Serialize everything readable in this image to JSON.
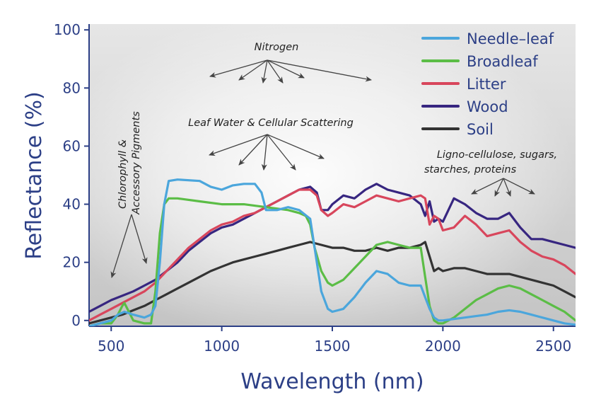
{
  "chart_data": {
    "type": "line",
    "xlabel": "Wavelength (nm)",
    "ylabel": "Reflectance (%)",
    "xlim": [
      400,
      2600
    ],
    "ylim": [
      -2,
      102
    ],
    "xticks": [
      "500",
      "1000",
      "1500",
      "2000",
      "2500"
    ],
    "xtick_values": [
      500,
      1000,
      1500,
      2000,
      2500
    ],
    "yticks": [
      "0",
      "20",
      "40",
      "60",
      "80",
      "100"
    ],
    "ytick_values": [
      0,
      20,
      40,
      60,
      80,
      100
    ],
    "grid": false,
    "legend_position": "top-right",
    "series": [
      {
        "name": "Needle–leaf",
        "color": "#4ba6dc",
        "x": [
          400,
          450,
          500,
          530,
          560,
          600,
          650,
          680,
          700,
          720,
          740,
          760,
          800,
          900,
          950,
          1000,
          1050,
          1100,
          1150,
          1180,
          1200,
          1250,
          1300,
          1350,
          1400,
          1430,
          1450,
          1480,
          1500,
          1550,
          1600,
          1650,
          1700,
          1750,
          1800,
          1850,
          1900,
          1920,
          1940,
          1960,
          1980,
          2000,
          2050,
          2100,
          2150,
          2200,
          2250,
          2300,
          2350,
          2400,
          2450,
          2500,
          2550,
          2600
        ],
        "y": [
          -2,
          -1,
          0,
          2,
          3,
          2,
          1,
          2,
          5,
          20,
          40,
          48,
          48.5,
          48,
          46,
          45,
          46.5,
          47,
          47,
          44,
          38,
          38,
          39,
          38,
          35,
          20,
          10,
          4,
          3,
          4,
          8,
          13,
          17,
          16,
          13,
          12,
          12,
          8,
          4,
          1,
          0,
          0,
          0.5,
          1,
          1.5,
          2,
          3,
          3.5,
          3,
          2,
          1,
          0,
          -1,
          -1.5
        ]
      },
      {
        "name": "Broadleaf",
        "color": "#5bbd46",
        "x": [
          400,
          450,
          500,
          530,
          550,
          560,
          580,
          600,
          650,
          680,
          700,
          720,
          740,
          760,
          800,
          900,
          1000,
          1100,
          1200,
          1300,
          1350,
          1380,
          1400,
          1420,
          1450,
          1480,
          1500,
          1550,
          1600,
          1650,
          1700,
          1750,
          1800,
          1850,
          1900,
          1920,
          1940,
          1960,
          1980,
          2000,
          2050,
          2100,
          2150,
          2200,
          2250,
          2300,
          2350,
          2400,
          2450,
          2500,
          2550,
          2600
        ],
        "y": [
          -2,
          -1,
          -1,
          2,
          5,
          6,
          3,
          0,
          -1,
          -1,
          10,
          30,
          40,
          42,
          42,
          41,
          40,
          40,
          39,
          38,
          37,
          36,
          33,
          25,
          17,
          13,
          12,
          14,
          18,
          22,
          26,
          27,
          26,
          25,
          25,
          15,
          5,
          0,
          -1,
          -1,
          1,
          4,
          7,
          9,
          11,
          12,
          11,
          9,
          7,
          5,
          3,
          0
        ]
      },
      {
        "name": "Litter",
        "color": "#d8465c",
        "x": [
          400,
          450,
          500,
          550,
          600,
          650,
          700,
          750,
          800,
          850,
          900,
          950,
          1000,
          1050,
          1100,
          1150,
          1200,
          1250,
          1300,
          1350,
          1400,
          1430,
          1450,
          1480,
          1500,
          1550,
          1600,
          1650,
          1700,
          1750,
          1800,
          1850,
          1900,
          1920,
          1940,
          1960,
          1980,
          2000,
          2050,
          2100,
          2150,
          2200,
          2250,
          2300,
          2350,
          2400,
          2450,
          2500,
          2550,
          2600
        ],
        "y": [
          0,
          2,
          4,
          6,
          8,
          10,
          13,
          17,
          21,
          25,
          28,
          31,
          33,
          34,
          36,
          37,
          39,
          41,
          43,
          45,
          45,
          43,
          38,
          36,
          37,
          40,
          39,
          41,
          43,
          42,
          41,
          42,
          43,
          42,
          33,
          36,
          35,
          31,
          32,
          36,
          33,
          29,
          30,
          31,
          27,
          24,
          22,
          21,
          19,
          16
        ]
      },
      {
        "name": "Wood",
        "color": "#372680",
        "x": [
          400,
          450,
          500,
          550,
          600,
          650,
          700,
          750,
          800,
          850,
          900,
          950,
          1000,
          1050,
          1100,
          1150,
          1200,
          1250,
          1300,
          1350,
          1400,
          1430,
          1450,
          1480,
          1500,
          1550,
          1600,
          1650,
          1700,
          1750,
          1800,
          1850,
          1900,
          1920,
          1940,
          1960,
          1980,
          2000,
          2050,
          2100,
          2150,
          2200,
          2250,
          2300,
          2350,
          2400,
          2450,
          2500,
          2550,
          2600
        ],
        "y": [
          3,
          5,
          7,
          8.5,
          10,
          12,
          14,
          17,
          20,
          24,
          27,
          30,
          32,
          33,
          35,
          37,
          39,
          41,
          43,
          45,
          46,
          44,
          38,
          38,
          40,
          43,
          42,
          45,
          47,
          45,
          44,
          43,
          40,
          36,
          41,
          34,
          35,
          34,
          42,
          40,
          37,
          35,
          35,
          37,
          32,
          28,
          28,
          27,
          26,
          25
        ]
      },
      {
        "name": "Soil",
        "color": "#333333",
        "x": [
          400,
          450,
          500,
          550,
          600,
          650,
          700,
          750,
          800,
          850,
          900,
          950,
          1000,
          1050,
          1100,
          1150,
          1200,
          1250,
          1300,
          1350,
          1400,
          1450,
          1500,
          1550,
          1600,
          1650,
          1700,
          1750,
          1800,
          1850,
          1900,
          1920,
          1940,
          1960,
          1980,
          2000,
          2050,
          2100,
          2150,
          2200,
          2250,
          2300,
          2350,
          2400,
          2450,
          2500,
          2550,
          2600
        ],
        "y": [
          -1,
          0,
          1,
          2,
          3.5,
          5,
          7,
          9,
          11,
          13,
          15,
          17,
          18.5,
          20,
          21,
          22,
          23,
          24,
          25,
          26,
          27,
          26,
          25,
          25,
          24,
          24,
          25,
          24,
          25,
          25,
          26,
          27,
          22,
          17,
          18,
          17,
          18,
          18,
          17,
          16,
          16,
          16,
          15,
          14,
          13,
          12,
          10,
          8
        ]
      }
    ],
    "annotations": [
      {
        "text": "Nitrogen"
      },
      {
        "text": "Leaf Water & Cellular Scattering"
      },
      {
        "text": "Chlorophyll &"
      },
      {
        "text": "Accessory Pigments"
      },
      {
        "text": "Ligno-cellulose, sugars,"
      },
      {
        "text": "starches, proteins"
      }
    ]
  }
}
